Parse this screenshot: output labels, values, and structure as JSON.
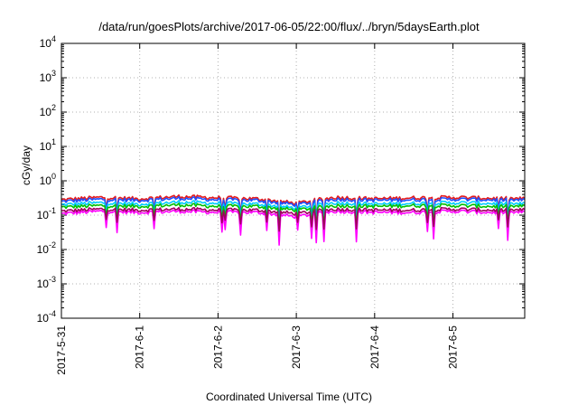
{
  "chart_data": {
    "type": "line",
    "title": "/data/run/goesPlots/archive/2017-06-05/22:00/flux/../bryn/5daysEarth.plot",
    "xlabel": "Coordinated Universal Time (UTC)",
    "ylabel": "cGy/day",
    "yscale": "log",
    "ylim": [
      0.0001,
      10000
    ],
    "xlim": [
      "2017-5-31",
      "2017-6-5 22:00"
    ],
    "x_ticks": [
      "2017-5-31",
      "2017-6-1",
      "2017-6-2",
      "2017-6-3",
      "2017-6-4",
      "2017-6-5"
    ],
    "y_ticks": [
      "10-4",
      "10-3",
      "10-2",
      "10-1",
      "100",
      "101",
      "102",
      "103",
      "104"
    ],
    "grid": true,
    "x": [
      "2017-5-31 00:00",
      "2017-5-31 12:00",
      "2017-6-1 00:00",
      "2017-6-1 12:00",
      "2017-6-2 00:00",
      "2017-6-2 12:00",
      "2017-6-3 00:00",
      "2017-6-3 12:00",
      "2017-6-4 00:00",
      "2017-6-4 12:00",
      "2017-6-5 00:00",
      "2017-6-5 12:00",
      "2017-6-5 22:00"
    ],
    "series": [
      {
        "color": "#e41a1c",
        "values": [
          0.28,
          0.33,
          0.3,
          0.35,
          0.32,
          0.3,
          0.22,
          0.33,
          0.3,
          0.32,
          0.33,
          0.31,
          0.3
        ]
      },
      {
        "color": "#1f4fff",
        "values": [
          0.25,
          0.29,
          0.27,
          0.31,
          0.28,
          0.27,
          0.2,
          0.29,
          0.27,
          0.28,
          0.29,
          0.28,
          0.27
        ]
      },
      {
        "color": "#00ccff",
        "values": [
          0.2,
          0.23,
          0.21,
          0.24,
          0.22,
          0.21,
          0.16,
          0.23,
          0.21,
          0.22,
          0.23,
          0.22,
          0.21
        ]
      },
      {
        "color": "#00c000",
        "values": [
          0.17,
          0.19,
          0.18,
          0.2,
          0.18,
          0.18,
          0.14,
          0.19,
          0.18,
          0.19,
          0.19,
          0.18,
          0.18
        ]
      },
      {
        "color": "#ff00ff",
        "values": [
          0.11,
          0.13,
          0.12,
          0.13,
          0.12,
          0.12,
          0.09,
          0.13,
          0.12,
          0.12,
          0.13,
          0.12,
          0.12
        ]
      },
      {
        "color": "#a00060",
        "values": [
          0.13,
          0.15,
          0.14,
          0.15,
          0.14,
          0.14,
          0.11,
          0.15,
          0.14,
          0.14,
          0.15,
          0.14,
          0.14
        ]
      }
    ]
  }
}
